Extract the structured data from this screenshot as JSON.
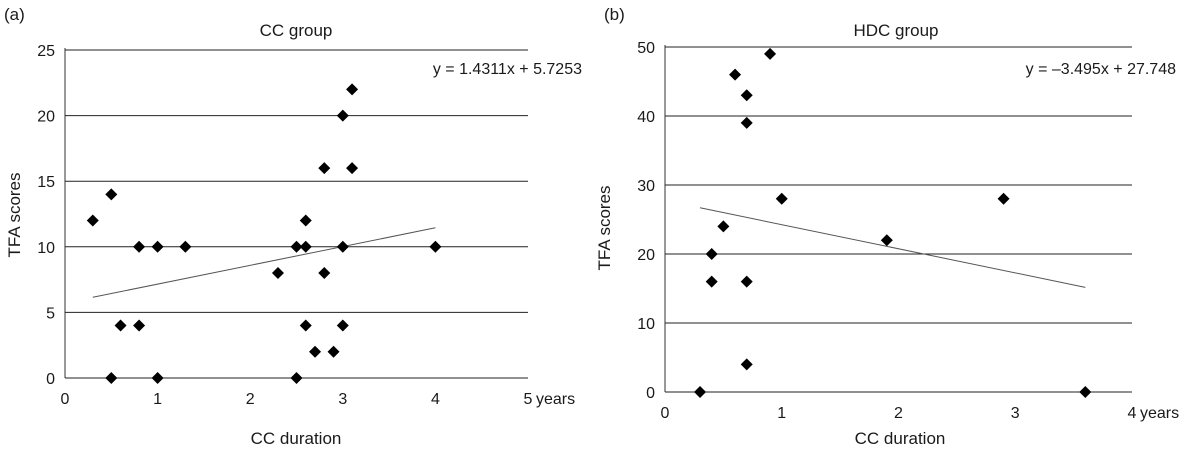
{
  "chart_data": [
    {
      "type": "scatter",
      "panel_label": "(a)",
      "title": "CC group",
      "xlabel": "CC duration",
      "ylabel": "TFA scores",
      "x_unit_label": "years",
      "xlim": [
        0,
        5
      ],
      "ylim": [
        0,
        25
      ],
      "xticks": [
        0,
        1,
        2,
        3,
        4,
        5
      ],
      "yticks": [
        0,
        5,
        10,
        15,
        20,
        25
      ],
      "grid": "horizontal",
      "marker": "diamond",
      "equation": "y = 1.4311x + 5.7253",
      "trendline": {
        "slope": 1.4311,
        "intercept": 5.7253,
        "x_range": [
          0.3,
          4.0
        ]
      },
      "points": [
        {
          "x": 0.3,
          "y": 12
        },
        {
          "x": 0.5,
          "y": 14
        },
        {
          "x": 0.5,
          "y": 0
        },
        {
          "x": 0.6,
          "y": 4
        },
        {
          "x": 0.8,
          "y": 4
        },
        {
          "x": 0.8,
          "y": 10
        },
        {
          "x": 1.0,
          "y": 10
        },
        {
          "x": 1.0,
          "y": 0
        },
        {
          "x": 1.3,
          "y": 10
        },
        {
          "x": 2.3,
          "y": 8
        },
        {
          "x": 2.5,
          "y": 10
        },
        {
          "x": 2.5,
          "y": 0
        },
        {
          "x": 2.6,
          "y": 12
        },
        {
          "x": 2.6,
          "y": 10
        },
        {
          "x": 2.6,
          "y": 4
        },
        {
          "x": 2.7,
          "y": 2
        },
        {
          "x": 2.8,
          "y": 16
        },
        {
          "x": 2.8,
          "y": 8
        },
        {
          "x": 2.9,
          "y": 2
        },
        {
          "x": 3.0,
          "y": 20
        },
        {
          "x": 3.0,
          "y": 10
        },
        {
          "x": 3.0,
          "y": 4
        },
        {
          "x": 3.1,
          "y": 22
        },
        {
          "x": 3.1,
          "y": 16
        },
        {
          "x": 4.0,
          "y": 10
        }
      ]
    },
    {
      "type": "scatter",
      "panel_label": "(b)",
      "title": "HDC group",
      "xlabel": "CC duration",
      "ylabel": "TFA scores",
      "x_unit_label": "years",
      "xlim": [
        0,
        4
      ],
      "ylim": [
        0,
        50
      ],
      "xticks": [
        0,
        1,
        2,
        3,
        4
      ],
      "yticks": [
        0,
        10,
        20,
        30,
        40,
        50
      ],
      "grid": "horizontal",
      "marker": "diamond",
      "equation": "y = –3.495x + 27.748",
      "trendline": {
        "slope": -3.495,
        "intercept": 27.748,
        "x_range": [
          0.3,
          3.6
        ]
      },
      "points": [
        {
          "x": 0.3,
          "y": 0
        },
        {
          "x": 0.4,
          "y": 20
        },
        {
          "x": 0.4,
          "y": 16
        },
        {
          "x": 0.5,
          "y": 24
        },
        {
          "x": 0.6,
          "y": 46
        },
        {
          "x": 0.7,
          "y": 43
        },
        {
          "x": 0.7,
          "y": 39
        },
        {
          "x": 0.7,
          "y": 16
        },
        {
          "x": 0.7,
          "y": 4
        },
        {
          "x": 0.9,
          "y": 49
        },
        {
          "x": 1.0,
          "y": 28
        },
        {
          "x": 1.9,
          "y": 22
        },
        {
          "x": 2.9,
          "y": 28
        },
        {
          "x": 3.6,
          "y": 0
        }
      ]
    }
  ]
}
